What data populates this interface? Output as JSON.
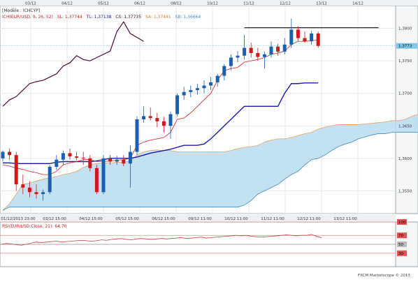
{
  "header": {
    "model_label": "[Modèle : ICHCYP]",
    "indicator_text": "ICH(EUR/USD, 9, 26, 52)",
    "sl_text": "SL: 1,37744",
    "tl_text": "TL: 1,37138",
    "cs_text": "CS: 1,37735",
    "sa_text": "SA: 1,37441",
    "sb_text": "SB: 1,36664"
  },
  "footer": {
    "copyright": "FXCM Marketscope © 2013"
  },
  "colors": {
    "up": "#1a5fb0",
    "down": "#cc1a1a",
    "tenkan": "#e02020",
    "kijun": "#1a1ab0",
    "chikou": "#4a0a3a",
    "cloud": "#b8dcef",
    "span_a": "#e8a060",
    "span_b": "#3a88c8",
    "price_tag": "#7ec8e8",
    "rsi_line": "#c04040"
  },
  "chart_data": [
    {
      "type": "candlestick",
      "title": "",
      "top_dates": [
        "03/12",
        "04/12",
        "05/12",
        "06/12",
        "08/12",
        "10/12",
        "11/12",
        "12/12",
        "13/12",
        "14/12"
      ],
      "bottom_dates": [
        "01/12/2013 23:00",
        "03/12 15:00",
        "04/12 15:00",
        "05/12 15:00",
        "06/12 15:00",
        "09/12 11:00",
        "10/12 11:00",
        "11/12 11:00",
        "12/12 11:00",
        "13/12 11:00"
      ],
      "y_ticks": [
        "1,3800",
        "1,3750",
        "1,3700",
        "1,3650",
        "1,3600",
        "1,3550"
      ],
      "ylim": [
        1.3515,
        1.3835
      ],
      "current_price_label": "1,3773",
      "horizontal_line": 1.3801,
      "candles": [
        {
          "o": 1.36,
          "h": 1.3612,
          "l": 1.3595,
          "c": 1.361
        },
        {
          "o": 1.361,
          "h": 1.3615,
          "l": 1.3598,
          "c": 1.3605
        },
        {
          "o": 1.3605,
          "h": 1.361,
          "l": 1.355,
          "c": 1.356
        },
        {
          "o": 1.356,
          "h": 1.3575,
          "l": 1.3545,
          "c": 1.3555
        },
        {
          "o": 1.3555,
          "h": 1.3565,
          "l": 1.354,
          "c": 1.3548
        },
        {
          "o": 1.3548,
          "h": 1.356,
          "l": 1.3538,
          "c": 1.3545
        },
        {
          "o": 1.3545,
          "h": 1.3552,
          "l": 1.3535,
          "c": 1.3548
        },
        {
          "o": 1.3548,
          "h": 1.359,
          "l": 1.3545,
          "c": 1.3587
        },
        {
          "o": 1.3587,
          "h": 1.3605,
          "l": 1.3582,
          "c": 1.3598
        },
        {
          "o": 1.3598,
          "h": 1.3612,
          "l": 1.359,
          "c": 1.3608
        },
        {
          "o": 1.3608,
          "h": 1.3615,
          "l": 1.3598,
          "c": 1.3603
        },
        {
          "o": 1.3603,
          "h": 1.361,
          "l": 1.3597,
          "c": 1.3601
        },
        {
          "o": 1.3601,
          "h": 1.361,
          "l": 1.359,
          "c": 1.36
        },
        {
          "o": 1.36,
          "h": 1.3605,
          "l": 1.358,
          "c": 1.3585
        },
        {
          "o": 1.3585,
          "h": 1.359,
          "l": 1.3545,
          "c": 1.3548
        },
        {
          "o": 1.3548,
          "h": 1.3605,
          "l": 1.3545,
          "c": 1.36
        },
        {
          "o": 1.36,
          "h": 1.3605,
          "l": 1.359,
          "c": 1.3595
        },
        {
          "o": 1.3595,
          "h": 1.3604,
          "l": 1.359,
          "c": 1.3598
        },
        {
          "o": 1.3598,
          "h": 1.3605,
          "l": 1.3588,
          "c": 1.3592
        },
        {
          "o": 1.3592,
          "h": 1.362,
          "l": 1.3555,
          "c": 1.361
        },
        {
          "o": 1.361,
          "h": 1.3665,
          "l": 1.3605,
          "c": 1.366
        },
        {
          "o": 1.366,
          "h": 1.368,
          "l": 1.3655,
          "c": 1.3665
        },
        {
          "o": 1.3665,
          "h": 1.3678,
          "l": 1.3658,
          "c": 1.3662
        },
        {
          "o": 1.3662,
          "h": 1.367,
          "l": 1.3648,
          "c": 1.3657
        },
        {
          "o": 1.3657,
          "h": 1.3664,
          "l": 1.364,
          "c": 1.365
        },
        {
          "o": 1.365,
          "h": 1.3672,
          "l": 1.363,
          "c": 1.3668
        },
        {
          "o": 1.3668,
          "h": 1.37,
          "l": 1.3664,
          "c": 1.3697
        },
        {
          "o": 1.3697,
          "h": 1.371,
          "l": 1.369,
          "c": 1.3702
        },
        {
          "o": 1.3702,
          "h": 1.3712,
          "l": 1.3694,
          "c": 1.3705
        },
        {
          "o": 1.3705,
          "h": 1.3715,
          "l": 1.3698,
          "c": 1.3708
        },
        {
          "o": 1.3708,
          "h": 1.372,
          "l": 1.37,
          "c": 1.3712
        },
        {
          "o": 1.3712,
          "h": 1.3725,
          "l": 1.3705,
          "c": 1.3717
        },
        {
          "o": 1.3717,
          "h": 1.373,
          "l": 1.371,
          "c": 1.3727
        },
        {
          "o": 1.3727,
          "h": 1.3745,
          "l": 1.372,
          "c": 1.3742
        },
        {
          "o": 1.3742,
          "h": 1.376,
          "l": 1.3735,
          "c": 1.3755
        },
        {
          "o": 1.3755,
          "h": 1.3765,
          "l": 1.3748,
          "c": 1.3758
        },
        {
          "o": 1.3758,
          "h": 1.379,
          "l": 1.3752,
          "c": 1.377
        },
        {
          "o": 1.377,
          "h": 1.3778,
          "l": 1.3755,
          "c": 1.3762
        },
        {
          "o": 1.3762,
          "h": 1.377,
          "l": 1.375,
          "c": 1.3756
        },
        {
          "o": 1.3756,
          "h": 1.3764,
          "l": 1.3738,
          "c": 1.376
        },
        {
          "o": 1.376,
          "h": 1.378,
          "l": 1.3755,
          "c": 1.3772
        },
        {
          "o": 1.3772,
          "h": 1.3776,
          "l": 1.3758,
          "c": 1.3764
        },
        {
          "o": 1.3764,
          "h": 1.3785,
          "l": 1.376,
          "c": 1.3775
        },
        {
          "o": 1.3775,
          "h": 1.3815,
          "l": 1.377,
          "c": 1.3798
        },
        {
          "o": 1.3798,
          "h": 1.3803,
          "l": 1.378,
          "c": 1.3785
        },
        {
          "o": 1.3785,
          "h": 1.3795,
          "l": 1.3778,
          "c": 1.378
        },
        {
          "o": 1.378,
          "h": 1.3796,
          "l": 1.3775,
          "c": 1.3792
        },
        {
          "o": 1.3792,
          "h": 1.3795,
          "l": 1.377,
          "c": 1.3773
        }
      ],
      "tenkan": [
        1.359,
        1.3588,
        1.3585,
        1.3583,
        1.358,
        1.3578,
        1.3575,
        1.3575,
        1.358,
        1.359,
        1.3593,
        1.3595,
        1.3598,
        1.3598,
        1.3595,
        1.3595,
        1.3596,
        1.3597,
        1.3598,
        1.36,
        1.362,
        1.3625,
        1.3628,
        1.363,
        1.3632,
        1.364,
        1.366,
        1.3662,
        1.367,
        1.368,
        1.369,
        1.37,
        1.372,
        1.3735,
        1.3738,
        1.374,
        1.3748,
        1.375,
        1.3752,
        1.3755,
        1.376,
        1.3762,
        1.3765,
        1.3775,
        1.378,
        1.378,
        1.3781,
        1.3782
      ],
      "kijun": [
        1.3593,
        1.3593,
        1.3592,
        1.3592,
        1.3592,
        1.3592,
        1.3592,
        1.3592,
        1.3594,
        1.3595,
        1.3595,
        1.3595,
        1.3595,
        1.3595,
        1.3596,
        1.3598,
        1.36,
        1.36,
        1.36,
        1.36,
        1.3602,
        1.3605,
        1.3608,
        1.361,
        1.3612,
        1.3614,
        1.3617,
        1.362,
        1.362,
        1.362,
        1.3622,
        1.363,
        1.364,
        1.365,
        1.366,
        1.367,
        1.368,
        1.368,
        1.368,
        1.368,
        1.368,
        1.368,
        1.37,
        1.3715,
        1.3715,
        1.3716,
        1.3716,
        1.3716
      ],
      "chikou": [
        1.368,
        1.369,
        1.3695,
        1.3705,
        1.3715,
        1.3718,
        1.372,
        1.3725,
        1.373,
        1.3742,
        1.3747,
        1.3758,
        1.3752,
        1.375,
        1.3755,
        1.376,
        1.3765,
        1.3795,
        1.381,
        1.3792,
        1.3786,
        1.378
      ],
      "senkou_a": [
        1.352,
        1.353,
        1.3545,
        1.356,
        1.3562,
        1.3565,
        1.3568,
        1.357,
        1.3572,
        1.3575,
        1.3577,
        1.358,
        1.3586,
        1.359,
        1.3592,
        1.3593,
        1.3593,
        1.3594,
        1.3594,
        1.3596,
        1.3605,
        1.361,
        1.3612,
        1.3613,
        1.3612,
        1.3612,
        1.361,
        1.361,
        1.361,
        1.361,
        1.361,
        1.361,
        1.361,
        1.361,
        1.3612,
        1.3615,
        1.3617,
        1.3618,
        1.362,
        1.3625,
        1.3628,
        1.363,
        1.363,
        1.3632,
        1.3635,
        1.3638,
        1.364,
        1.3645,
        1.3648,
        1.365,
        1.3652,
        1.3652,
        1.3652,
        1.3652,
        1.3653,
        1.3654,
        1.3655,
        1.3656,
        1.3658,
        1.3658,
        1.366,
        1.3665,
        1.3668,
        1.367,
        1.367,
        1.3672,
        1.3674
      ],
      "senkou_b": [
        1.352,
        1.3525,
        1.3525,
        1.3525,
        1.3525,
        1.3525,
        1.3525,
        1.3525,
        1.3525,
        1.3525,
        1.3525,
        1.3525,
        1.3525,
        1.3525,
        1.3525,
        1.3525,
        1.3525,
        1.3525,
        1.3525,
        1.3525,
        1.3525,
        1.3525,
        1.3525,
        1.3525,
        1.3525,
        1.3525,
        1.3525,
        1.3525,
        1.3525,
        1.3525,
        1.3525,
        1.3525,
        1.3525,
        1.3525,
        1.3525,
        1.3525,
        1.3528,
        1.3535,
        1.3545,
        1.355,
        1.3555,
        1.356,
        1.3568,
        1.3575,
        1.358,
        1.359,
        1.3598,
        1.36,
        1.3605,
        1.3612,
        1.3618,
        1.3622,
        1.3625,
        1.363,
        1.3633,
        1.3636,
        1.3638,
        1.3638,
        1.364,
        1.364,
        1.364,
        1.364,
        1.364,
        1.364,
        1.3645,
        1.3652,
        1.3658
      ]
    },
    {
      "type": "line",
      "title": "",
      "indicator_label": "RSI(EUR/USD.Close, 21): 64,70",
      "y_ticks": [
        "100",
        "70",
        "50",
        "30"
      ],
      "ylim": [
        0,
        100
      ],
      "values": [
        50,
        52,
        51,
        49,
        48,
        50,
        53,
        55,
        54,
        55,
        56,
        57,
        55,
        56,
        57,
        58,
        59,
        58,
        57,
        58,
        60,
        59,
        61,
        62,
        63,
        61,
        60,
        62,
        63,
        62,
        61,
        62,
        63,
        62,
        63,
        64,
        65,
        63,
        64,
        65,
        66,
        64,
        65,
        66,
        67,
        68,
        69,
        70,
        69,
        70,
        68,
        67,
        66,
        67,
        68,
        69,
        70,
        71,
        70,
        69,
        70,
        70,
        72,
        68,
        64.7
      ]
    }
  ]
}
